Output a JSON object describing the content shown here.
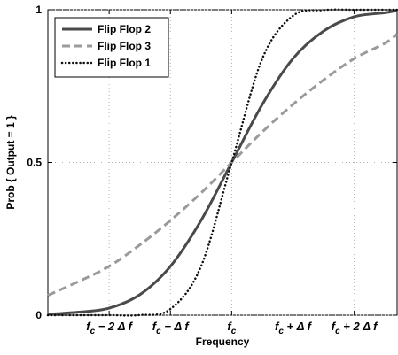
{
  "chart_data": {
    "type": "line",
    "xlabel": "Frequency",
    "ylabel": "Prob { Output = 1 }",
    "xlim": [
      -3.0,
      2.7
    ],
    "ylim": [
      0,
      1
    ],
    "grid": true,
    "legend_position": "top-left",
    "x_ticks": [
      {
        "value": -2,
        "label": "f_c − 2 Δ f"
      },
      {
        "value": -1,
        "label": "f_c − Δ f"
      },
      {
        "value": 0,
        "label": "f_c"
      },
      {
        "value": 1,
        "label": "f_c + Δ f"
      },
      {
        "value": 2,
        "label": "f_c + 2 Δ f"
      }
    ],
    "y_ticks": [
      {
        "value": 0,
        "label": "0"
      },
      {
        "value": 0.5,
        "label": "0.5"
      },
      {
        "value": 1,
        "label": "1"
      }
    ],
    "x": [
      -3.0,
      -2.5,
      -2.0,
      -1.5,
      -1.0,
      -0.5,
      0.0,
      0.5,
      1.0,
      1.5,
      2.0,
      2.5,
      2.7
    ],
    "series": [
      {
        "name": "Flip Flop  2",
        "style": "solid",
        "color": "#4a4a4a",
        "values": [
          0.003,
          0.01,
          0.023,
          0.067,
          0.16,
          0.31,
          0.5,
          0.69,
          0.84,
          0.93,
          0.977,
          0.99,
          0.997
        ]
      },
      {
        "name": "Flip Flop 3",
        "style": "dashed",
        "color": "#9a9a9a",
        "values": [
          0.065,
          0.11,
          0.16,
          0.23,
          0.31,
          0.4,
          0.5,
          0.6,
          0.69,
          0.77,
          0.84,
          0.89,
          0.92
        ]
      },
      {
        "name": "Flip Flop 1",
        "style": "dotted",
        "color": "#111111",
        "values": [
          0.0,
          0.0,
          0.0,
          0.0005,
          0.02,
          0.16,
          0.5,
          0.84,
          0.98,
          0.999,
          1.0,
          1.0,
          1.0
        ]
      }
    ]
  }
}
